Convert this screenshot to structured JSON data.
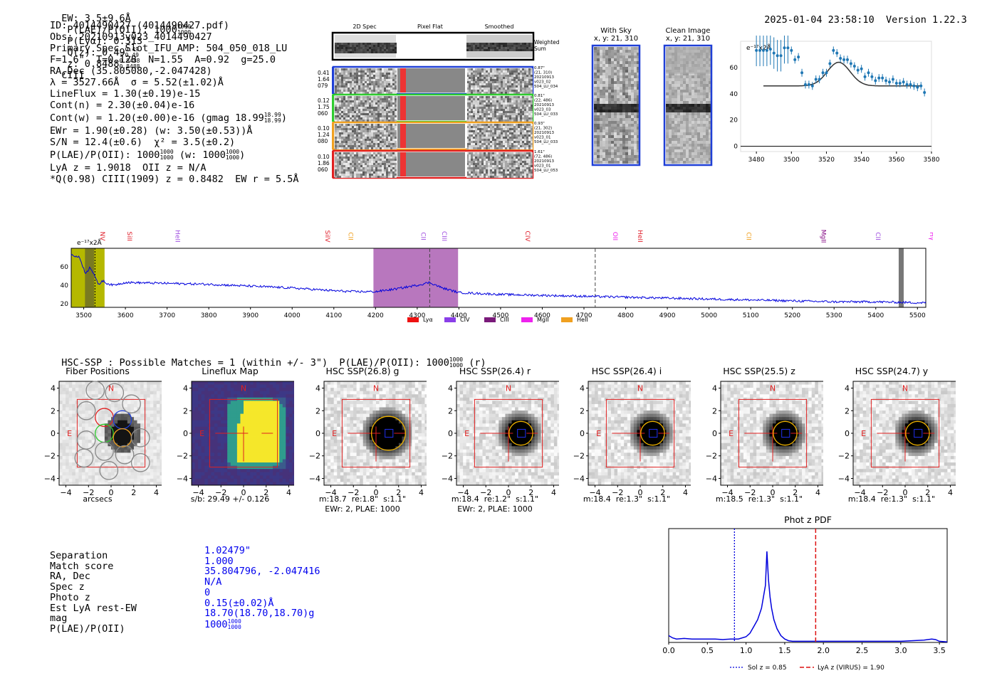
{
  "header": {
    "ew": "EW: 3.5±9.6Å",
    "plae": "P(LAE)/P(OII): 1000",
    "plae_sup": "1000",
    "plae_sub": "1000",
    "plya": "P(Lyα): 0.313",
    "qz": "Q(z): 0.49",
    "qz_sup": "0.49",
    "qz_sub": "0.49",
    "z": "z: 0.8488",
    "z_sup": "0.8488",
    "z_sub": "0.8488",
    "line": "CIII",
    "timestamp": "2025-01-04 23:58:10",
    "version": "Version 1.22.3"
  },
  "info": {
    "lines": [
      "ID: 4014490427 (4014490427.pdf)",
      "Obs: 20210913v023_4014490427",
      "Primary Spec_Slot_IFU_AMP: 504_050_018_LU",
      "F=1.6\"  T=0.128  N=1.55  A=0.92  g=25.0",
      "RA,Dec (35.805080,-2.047428)",
      "λ = 3527.66Å  σ = 5.52(±1.02)Å",
      "LineFlux = 1.30(±0.19)e-15",
      "Cont(n) = 2.30(±0.04)e-16",
      "Cont(w) = 1.20(±0.00)e-16 (gmag 18.99",
      "EWr = 1.90(±0.28) (w: 3.50(±0.53))Å",
      "S/N = 12.4(±0.6)  χ² = 3.5(±0.2)",
      "P(LAE)/P(OII): 1000",
      "LyA z = 1.9018  OII z = N/A",
      "*Q(0.98) CIII(1909) z = 0.8482  EW r = 5.5Å"
    ],
    "gmag_sup": "18.99",
    "gmag_sub": "18.99",
    "gmag_tail": ")",
    "plae_sup": "1000",
    "plae_sub": "1000",
    "plae_w": " (w: 1000",
    "plae_w_sup": "1000",
    "plae_w_sub": "1000",
    "plae_w_tail": ")"
  },
  "spec2d": {
    "col_titles": [
      "2D Spec",
      "Pixel Flat",
      "Smoothed"
    ],
    "weighted_label": "Weighted\nSum",
    "rows": [
      {
        "left": [
          "0.41",
          "1.64",
          "079"
        ],
        "right": [
          "0.87\"",
          "(21, 310)",
          "20210913",
          "v023_02",
          "504_LU_034"
        ],
        "color": "#1f3fd6"
      },
      {
        "left": [
          "0.12",
          "1.75",
          "060"
        ],
        "right": [
          "0.81\"",
          "(22, 486)",
          "20210913",
          "v023_03",
          "504_LU_033"
        ],
        "color": "#2ecc2e"
      },
      {
        "left": [
          "0.10",
          "1.24",
          "080"
        ],
        "right": [
          "0.93\"",
          "(21, 302)",
          "20210913",
          "v023_01",
          "504_LU_033"
        ],
        "color": "#f0a020"
      },
      {
        "left": [
          "0.10",
          "1.86",
          "060"
        ],
        "right": [
          "1.61\"",
          "(72, 486)",
          "20210913",
          "v023_01",
          "504_LU_053"
        ],
        "color": "#e02020"
      }
    ]
  },
  "sky_cutouts": {
    "with_sky": "With Sky",
    "with_sky_xy": "x, y: 21, 310",
    "clean": "Clean Image",
    "clean_xy": "x, y: 21, 310"
  },
  "zoom_spec": {
    "scale_label": "e⁻¹⁷x2Å",
    "chart_data": {
      "type": "scatter",
      "x": [
        3480,
        3482,
        3484,
        3486,
        3488,
        3490,
        3492,
        3494,
        3496,
        3498,
        3500,
        3502,
        3504,
        3506,
        3508,
        3510,
        3512,
        3514,
        3516,
        3518,
        3520,
        3522,
        3524,
        3526,
        3528,
        3530,
        3532,
        3534,
        3536,
        3538,
        3540,
        3542,
        3544,
        3546,
        3548,
        3550,
        3552,
        3554,
        3556,
        3558,
        3560,
        3562,
        3564,
        3566,
        3568,
        3570,
        3572,
        3574,
        3576
      ],
      "y": [
        73,
        73,
        73,
        73,
        74,
        71,
        69,
        69,
        75,
        75,
        73,
        66,
        68,
        56,
        47,
        47,
        46,
        51,
        51,
        56,
        56,
        63,
        73,
        71,
        67,
        66,
        66,
        63,
        61,
        58,
        59,
        53,
        56,
        53,
        50,
        52,
        52,
        50,
        49,
        51,
        48,
        48,
        49,
        47,
        47,
        46,
        45,
        46,
        41
      ],
      "fit": {
        "continuum": 46,
        "peak": 64,
        "center": 3527,
        "sigma": 6.5,
        "range": [
          3484,
          3574
        ]
      },
      "xlim": [
        3471,
        3580
      ],
      "ylim": [
        -4,
        80
      ],
      "xticks": [
        3480,
        3500,
        3520,
        3540,
        3560,
        3580
      ],
      "yticks": [
        0,
        20,
        40,
        60
      ]
    }
  },
  "full_spec": {
    "scale_label": "e⁻¹⁷x2Å",
    "line_labels": [
      {
        "name": "NV",
        "x": 3540,
        "color": "#e0202c"
      },
      {
        "name": "SiII",
        "x": 3605,
        "color": "#e0202c"
      },
      {
        "name": "HeII",
        "x": 3720,
        "color": "#a050e0"
      },
      {
        "name": "SiIV",
        "x": 4080,
        "color": "#e0202c"
      },
      {
        "name": "CII",
        "x": 4135,
        "color": "#f0a020"
      },
      {
        "name": "CII",
        "x": 4310,
        "color": "#a050e0"
      },
      {
        "name": "CIII",
        "x": 4360,
        "color": "#a050e0"
      },
      {
        "name": "CIV",
        "x": 4560,
        "color": "#e0202c"
      },
      {
        "name": "OII",
        "x": 4770,
        "color": "#ee22ee"
      },
      {
        "name": "HeII",
        "x": 4830,
        "color": "#e0202c"
      },
      {
        "name": "CII",
        "x": 5090,
        "color": "#f0a020"
      },
      {
        "name": "MgII",
        "x": 5270,
        "color": "#800080"
      },
      {
        "name": "CII",
        "x": 5400,
        "color": "#a050e0"
      },
      {
        "name": "Hγ",
        "x": 5530,
        "color": "#ee22ee"
      }
    ],
    "legend": [
      {
        "name": "Lyα",
        "color": "#ee1111"
      },
      {
        "name": "CIV",
        "color": "#8a3fe8"
      },
      {
        "name": "CIII",
        "color": "#7a1a7a"
      },
      {
        "name": "MgII",
        "color": "#ee22ee"
      },
      {
        "name": "HeII",
        "color": "#f0a020"
      }
    ],
    "chart_data": {
      "type": "line",
      "xlim": [
        3470,
        5520
      ],
      "ylim": [
        16,
        80
      ],
      "xticks": [
        3500,
        3600,
        3700,
        3800,
        3900,
        4000,
        4100,
        4200,
        4300,
        4400,
        4500,
        4600,
        4700,
        4800,
        4900,
        5000,
        5100,
        5200,
        5300,
        5400,
        5500
      ],
      "yticks": [
        20,
        40,
        60
      ],
      "series_nodes": {
        "x": [
          3470,
          3490,
          3505,
          3515,
          3525,
          3535,
          3545,
          3555,
          3570,
          3600,
          3700,
          3800,
          3900,
          4000,
          4100,
          4150,
          4200,
          4250,
          4300,
          4330,
          4360,
          4400,
          4500,
          4600,
          4700,
          4800,
          4900,
          5000,
          5100,
          5200,
          5300,
          5400,
          5500,
          5520
        ],
        "y": [
          73,
          70,
          52,
          60,
          52,
          40,
          45,
          42,
          40,
          43,
          42,
          41,
          39,
          37,
          34,
          33,
          33,
          36,
          40,
          43,
          37,
          32,
          30,
          29,
          28,
          27,
          26,
          25,
          24,
          23,
          22,
          22,
          21,
          21
        ]
      },
      "bands": [
        {
          "x0": 3470,
          "x1": 3550,
          "color": "#b5b800"
        },
        {
          "x0": 3503,
          "x1": 3525,
          "color": "#7a7a20"
        },
        {
          "x0": 4195,
          "x1": 4398,
          "color": "#a049a8"
        },
        {
          "x0": 5455,
          "x1": 5467,
          "color": "#777777"
        }
      ],
      "vlines": [
        4330,
        4727
      ],
      "dotted_vline": 3527
    }
  },
  "hsc": {
    "title": "HSC-SSP : Possible Matches = 1 (within +/- 3\")  P(LAE)/P(OII): 1000",
    "title_sup": "1000",
    "title_sub": "1000",
    "title_tail": " (r)",
    "cutouts": [
      {
        "title": "Fiber Positions",
        "foot1": "arcsecs",
        "foot2": ""
      },
      {
        "title": "Lineflux Map",
        "foot1": "s/b: 29.49 +/- 0.126",
        "foot2": ""
      },
      {
        "title": "HSC SSP(26.8) g",
        "foot1": "m:18.7  re:1.8\"  s:1.1\"",
        "foot2": "EWr: 2, PLAE: 1000"
      },
      {
        "title": "HSC SSP(26.4) r",
        "foot1": "m:18.4  re:1.2\"  s:1.1\"",
        "foot2": "EWr: 2, PLAE: 1000"
      },
      {
        "title": "HSC SSP(26.4) i",
        "foot1": "m:18.4  re:1.3\"  s:1.1\"",
        "foot2": ""
      },
      {
        "title": "HSC SSP(25.5) z",
        "foot1": "m:18.5  re:1.3\"  s:1.1\"",
        "foot2": ""
      },
      {
        "title": "HSC SSP(24.7) y",
        "foot1": "m:18.4  re:1.3\"  s:1.1\"",
        "foot2": ""
      }
    ],
    "ticks": [
      "4",
      "2",
      "0",
      "−2",
      "−4"
    ],
    "xticks": [
      "−4",
      "−2",
      "0",
      "2",
      "4"
    ],
    "north": "N",
    "east": "E"
  },
  "match": {
    "labels": [
      "Separation",
      "Match score",
      "RA, Dec",
      "Spec z",
      "Photo z",
      "Est LyA rest-EW",
      "mag",
      "P(LAE)/P(OII)"
    ],
    "values": [
      "1.02479\"",
      "1.000",
      "35.804796, -2.047416",
      "N/A",
      "0",
      "0.15(±0.02)Å",
      "18.70(18.70,18.70)g",
      "1000"
    ],
    "plae_sup": "1000",
    "plae_sub": "1000"
  },
  "photz": {
    "title": "Phot z PDF",
    "legend_sol": "Sol z = 0.85",
    "legend_lya": "LyA z (VIRUS) = 1.90",
    "chart_data": {
      "type": "line",
      "xlim": [
        0.0,
        3.6
      ],
      "xticks": [
        0.0,
        0.5,
        1.0,
        1.5,
        2.0,
        2.5,
        3.0,
        3.5
      ],
      "sol_z": 0.85,
      "lya_z": 1.9,
      "x": [
        0.0,
        0.05,
        0.1,
        0.2,
        0.3,
        0.4,
        0.5,
        0.6,
        0.7,
        0.8,
        0.9,
        1.0,
        1.05,
        1.1,
        1.15,
        1.2,
        1.23,
        1.25,
        1.27,
        1.29,
        1.31,
        1.33,
        1.36,
        1.4,
        1.45,
        1.5,
        1.55,
        1.6,
        1.7,
        1.8,
        2.0,
        2.5,
        3.0,
        3.3,
        3.4,
        3.45,
        3.5,
        3.6
      ],
      "y": [
        0.06,
        0.04,
        0.03,
        0.035,
        0.03,
        0.03,
        0.03,
        0.03,
        0.025,
        0.03,
        0.03,
        0.05,
        0.08,
        0.14,
        0.2,
        0.3,
        0.42,
        0.5,
        0.8,
        0.55,
        0.4,
        0.3,
        0.2,
        0.12,
        0.06,
        0.03,
        0.015,
        0.01,
        0.01,
        0.01,
        0.01,
        0.01,
        0.01,
        0.02,
        0.03,
        0.025,
        0.01,
        0.005
      ],
      "ymax": 1.0
    }
  }
}
